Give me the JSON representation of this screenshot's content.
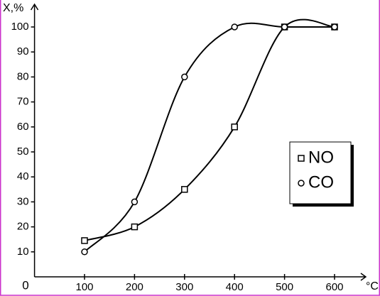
{
  "chart_data": {
    "type": "line",
    "y_label": "X,%",
    "x_label": "°C",
    "origin_label": "0",
    "x": [
      100,
      200,
      300,
      400,
      500,
      600
    ],
    "series": [
      {
        "name": "NO",
        "marker": "square",
        "color": "#000000",
        "values": [
          14.5,
          20,
          35,
          60,
          100,
          100
        ]
      },
      {
        "name": "CO",
        "marker": "circle",
        "color": "#000000",
        "values": [
          10,
          30,
          80,
          100,
          100,
          100
        ]
      }
    ],
    "xlim": [
      0,
      662
    ],
    "ylim": [
      0,
      108.5
    ],
    "xticks": [
      100,
      200,
      300,
      400,
      500,
      600
    ],
    "yticks": [
      10,
      20,
      30,
      40,
      50,
      60,
      70,
      80,
      90,
      100
    ],
    "smooth": true,
    "legend": "right"
  }
}
